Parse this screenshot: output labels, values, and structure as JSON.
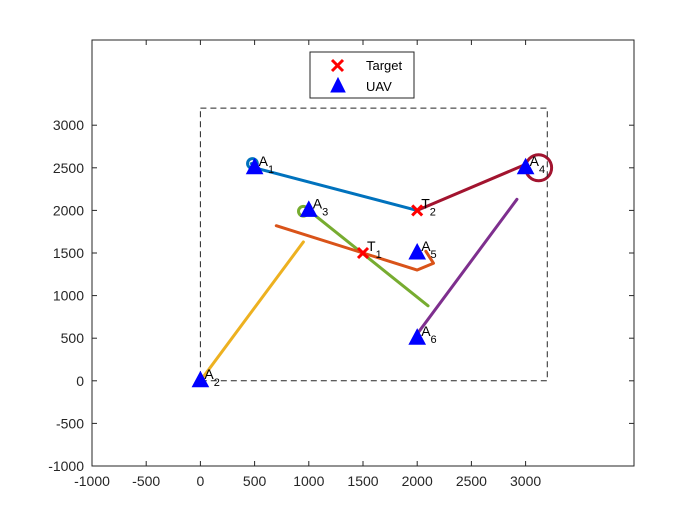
{
  "chart_data": {
    "type": "scatter",
    "title": "",
    "xlabel": "",
    "ylabel": "",
    "xlim": [
      -1000,
      4000
    ],
    "ylim": [
      -1000,
      4000
    ],
    "xticks": [
      -1000,
      -500,
      0,
      500,
      1000,
      1500,
      2000,
      2500,
      3000
    ],
    "yticks": [
      -1000,
      -500,
      0,
      500,
      1000,
      1500,
      2000,
      2500,
      3000
    ],
    "grid": false,
    "legend": {
      "position": "top-center",
      "entries": [
        {
          "label": "Target",
          "marker": "x",
          "color": "#ff0000"
        },
        {
          "label": "UAV",
          "marker": "triangle",
          "color": "#0000ff"
        }
      ]
    },
    "boundary": {
      "x": [
        0,
        3200
      ],
      "y": [
        0,
        3200
      ],
      "style": "dashed"
    },
    "targets": [
      {
        "name": "T",
        "sub": "1",
        "x": 1500,
        "y": 1500
      },
      {
        "name": "T",
        "sub": "2",
        "x": 2000,
        "y": 2000
      }
    ],
    "uavs": [
      {
        "name": "A",
        "sub": "1",
        "x": 500,
        "y": 2500
      },
      {
        "name": "A",
        "sub": "2",
        "x": 0,
        "y": 0
      },
      {
        "name": "A",
        "sub": "3",
        "x": 1000,
        "y": 2000
      },
      {
        "name": "A",
        "sub": "4",
        "x": 3000,
        "y": 2500
      },
      {
        "name": "A",
        "sub": "5",
        "x": 2000,
        "y": 1500
      },
      {
        "name": "A",
        "sub": "6",
        "x": 2000,
        "y": 500
      }
    ],
    "paths": [
      {
        "uav": "A1",
        "color": "#0072bd",
        "points": [
          [
            470,
            2550
          ],
          [
            500,
            2500
          ],
          [
            2000,
            2000
          ]
        ],
        "loop": {
          "x": 480,
          "y": 2550,
          "r": 45
        }
      },
      {
        "uav": "A2",
        "color": "#edb120",
        "points": [
          [
            0,
            0
          ],
          [
            950,
            1630
          ]
        ]
      },
      {
        "uav": "A3",
        "color": "#77ac30",
        "points": [
          [
            1000,
            2000
          ],
          [
            2100,
            880
          ]
        ],
        "loop": {
          "x": 950,
          "y": 1990,
          "r": 45
        }
      },
      {
        "uav": "A4",
        "color": "#a2142f",
        "points": [
          [
            2000,
            2000
          ],
          [
            3000,
            2540
          ]
        ],
        "loop": {
          "x": 3120,
          "y": 2500,
          "r": 120
        }
      },
      {
        "uav": "A5",
        "color": "#d95319",
        "points": [
          [
            700,
            1820
          ],
          [
            1500,
            1500
          ],
          [
            2000,
            1300
          ],
          [
            2150,
            1380
          ],
          [
            2080,
            1520
          ]
        ]
      },
      {
        "uav": "A6",
        "color": "#7e2f8e",
        "points": [
          [
            2000,
            550
          ],
          [
            2920,
            2130
          ]
        ]
      }
    ]
  }
}
